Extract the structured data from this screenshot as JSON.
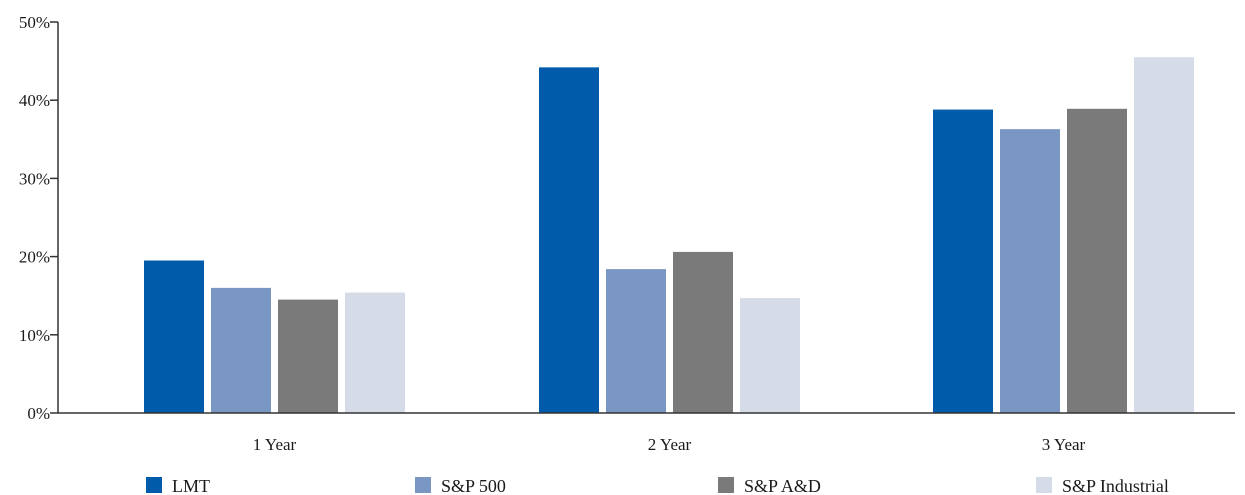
{
  "chart_data": {
    "type": "bar",
    "categories": [
      "1  Year",
      "2  Year",
      "3  Year"
    ],
    "series": [
      {
        "name": "LMT",
        "color": "#005BAA",
        "values": [
          19.5,
          44.2,
          38.8
        ]
      },
      {
        "name": "S&P 500",
        "color": "#7A96C3",
        "values": [
          16.0,
          18.4,
          36.3
        ]
      },
      {
        "name": "S&P A&D",
        "color": "#7A7A7A",
        "values": [
          14.5,
          20.6,
          38.9
        ]
      },
      {
        "name": "S&P Industrial",
        "color": "#D6DCE7",
        "values": [
          15.4,
          14.7,
          45.5
        ]
      }
    ],
    "y_ticks": [
      "0%",
      "10%",
      "20%",
      "30%",
      "40%",
      "50%"
    ],
    "ylim": [
      0,
      50
    ],
    "title": "",
    "xlabel": "",
    "ylabel": "",
    "grid": false,
    "legend_position": "bottom"
  }
}
